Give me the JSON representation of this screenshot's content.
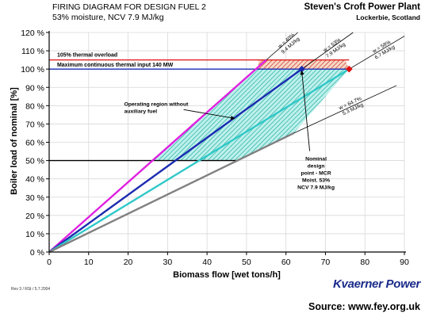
{
  "header": {
    "title": "FIRING DIAGRAM FOR DESIGN FUEL 2",
    "subtitle": "53% moisture, NCV 7.9 MJ/kg",
    "plant_name": "Steven's Croft Power Plant",
    "plant_location": "Lockerbie, Scotland"
  },
  "footer": {
    "revision": "Rev 3 / RSt / 5.7.2004",
    "company": "Kvaerner Power",
    "source": "Source: www.fey.org.uk"
  },
  "chart_data": {
    "type": "line",
    "xlabel": "Biomass flow [wet tons/h]",
    "ylabel": "Boiler load of nominal [%]",
    "xlim": [
      0,
      90
    ],
    "ylim": [
      0,
      120
    ],
    "xticks": [
      "0",
      "10",
      "20",
      "30",
      "40",
      "50",
      "60",
      "70",
      "80",
      "90"
    ],
    "yticks": [
      "0 %",
      "10 %",
      "20 %",
      "30 %",
      "40 %",
      "50 %",
      "60 %",
      "70 %",
      "80 %",
      "90 %",
      "100 %",
      "110 %",
      "120 %"
    ],
    "colors": {
      "magenta": "#e020e0",
      "blue": "#1a2bb0",
      "cyan": "#30c8c8",
      "gray": "#808080",
      "overload": "#dd1111",
      "mcr": "#1a2bb0",
      "hatch": "#20b0a0",
      "hatch_red": "#cc3322"
    },
    "series": [
      {
        "key": "w40",
        "label_top": "w = 40%",
        "label_bottom": "9.4 MJ/kg",
        "color": "magenta",
        "points": [
          [
            0,
            0
          ],
          [
            55,
            105
          ]
        ],
        "ext_end": [
          63,
          120
        ]
      },
      {
        "key": "w53",
        "label_top": "w = 53%",
        "label_bottom": "7.9 MJ/kg",
        "color": "blue",
        "points": [
          [
            0,
            0
          ],
          [
            64,
            100
          ]
        ],
        "ext_end": [
          77,
          120
        ]
      },
      {
        "key": "w58",
        "label_top": "w = 58%",
        "label_bottom": "6.7 MJ/kg",
        "color": "cyan",
        "points": [
          [
            0,
            0
          ],
          [
            76,
            100
          ]
        ],
        "ext_end": [
          90,
          118
        ]
      },
      {
        "key": "w647",
        "label_top": "w = 64.7%",
        "label_bottom": "5.3 MJ/kg",
        "color": "gray",
        "points": [
          [
            0,
            0
          ],
          [
            62,
            65
          ]
        ],
        "ext_end": [
          88,
          91
        ]
      }
    ],
    "region_operating": [
      [
        26,
        50
      ],
      [
        55,
        105
      ],
      [
        76,
        100
      ],
      [
        62,
        65
      ],
      [
        48,
        50
      ]
    ],
    "region_overload": [
      [
        53,
        105
      ],
      [
        75,
        105
      ],
      [
        76,
        100
      ],
      [
        53,
        100
      ]
    ],
    "hlines": [
      {
        "key": "overload",
        "y": 105,
        "x0": 0,
        "x1": 76,
        "color": "overload",
        "label": "105% thermal overload",
        "label_x": 2
      },
      {
        "key": "mcr",
        "y": 100,
        "x0": 0,
        "x1": 76,
        "color": "mcr",
        "label": "Maximum continuous thermal input 140 MW",
        "label_x": 2
      },
      {
        "key": "minload",
        "y": 50,
        "x0": 0,
        "x1": 48,
        "color": "black"
      }
    ],
    "points": [
      {
        "key": "nominal",
        "x": 64,
        "y": 100,
        "color": "blue"
      },
      {
        "key": "max_wet",
        "x": 76,
        "y": 100,
        "color": "overload"
      }
    ],
    "annotations": [
      {
        "key": "operating",
        "lines": [
          "Operating region without",
          "auxiliary fuel"
        ],
        "x": 19,
        "y": 80,
        "arrow_to": [
          47,
          73
        ]
      },
      {
        "key": "nominal_design",
        "lines": [
          "Nominal",
          "design",
          "point - MCR",
          "Moist. 53%",
          "NCV 7.9 MJ/kg"
        ],
        "x": 64,
        "y": 50,
        "arrow_to": [
          64,
          99
        ]
      }
    ]
  }
}
